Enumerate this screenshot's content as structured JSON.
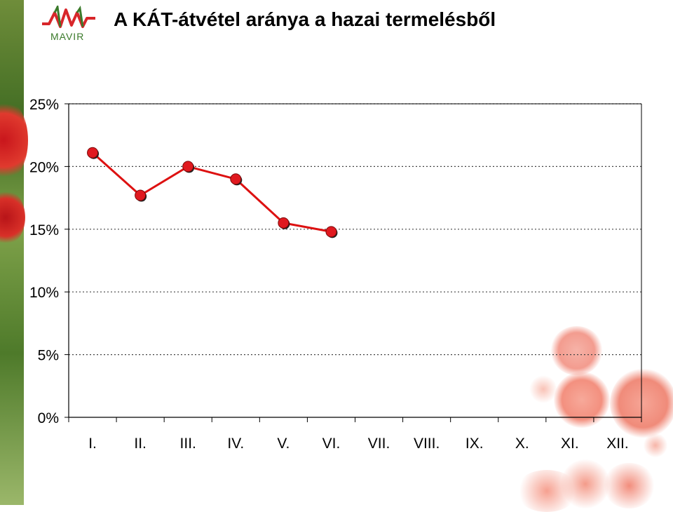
{
  "header": {
    "logo_text": "MAVIR",
    "title": "A KÁT-átvétel aránya a hazai termelésből"
  },
  "colors": {
    "line": "#dd1111",
    "marker": "#e0191f",
    "grid": "#444444",
    "logo_red": "#d8262a",
    "logo_green": "#3a7a2a"
  },
  "chart_data": {
    "type": "line",
    "title": "A KÁT-átvétel aránya a hazai termelésből",
    "xlabel": "",
    "ylabel": "",
    "categories": [
      "I.",
      "II.",
      "III.",
      "IV.",
      "V.",
      "VI.",
      "VII.",
      "VIII.",
      "IX.",
      "X.",
      "XI.",
      "XII."
    ],
    "series": [
      {
        "values": [
          21.1,
          17.7,
          20.0,
          19.0,
          15.5,
          14.8,
          null,
          null,
          null,
          null,
          null,
          null
        ]
      }
    ],
    "ylim": [
      0,
      25
    ],
    "yticks": [
      0,
      5,
      10,
      15,
      20,
      25
    ],
    "ytick_labels": [
      "0%",
      "5%",
      "10%",
      "15%",
      "20%",
      "25%"
    ],
    "grid": "horizontal dotted",
    "legend": "none"
  }
}
